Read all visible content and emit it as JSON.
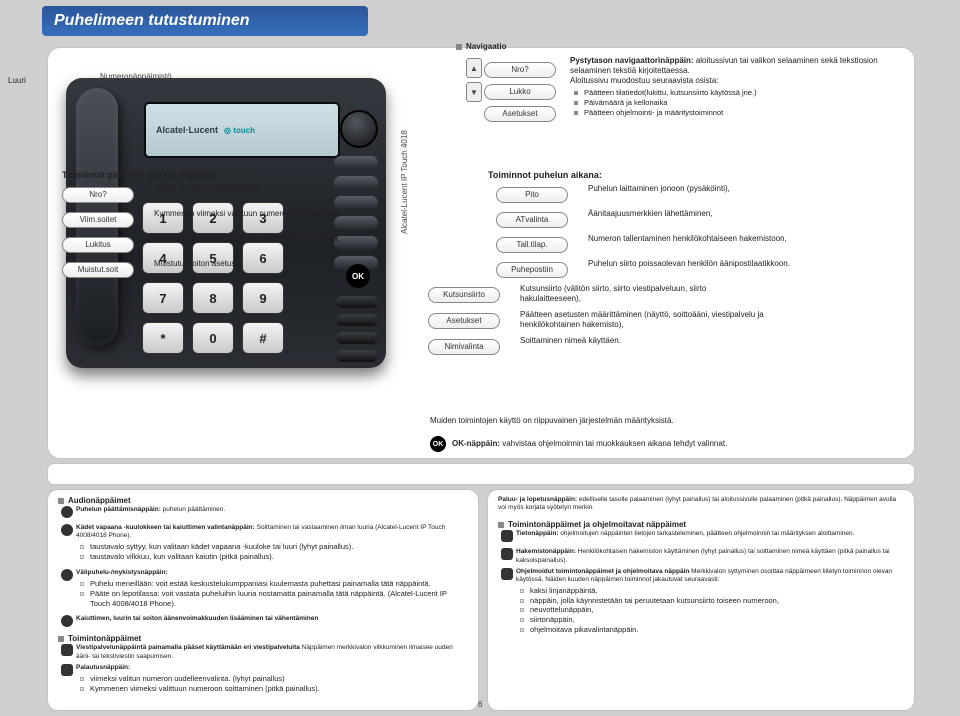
{
  "title": "Puhelimeen tutustuminen",
  "side_labels": {
    "luuri": "Luuri",
    "numeronapp": "Numeronäppäimistö"
  },
  "nav": {
    "header": "Navigaatio",
    "items": [
      "Nro?",
      "Lukko",
      "Asetukset"
    ],
    "up": "▲",
    "down": "▼",
    "desc_heading": "Pystytason navigaattorinäppäin:",
    "desc": "aloitussivun tai valikon selaaminen sekä tekstiosion selaaminen tekstiä kirjoitettaessa.",
    "l1": "Aloitussivu muodostuu seuraavista osista:",
    "bullets": [
      "Päätteen tilatiedot(lukittu, kutsunsiirto käytössä jne.)",
      "Päivämäärä ja kellonaika",
      "Päätteen ohjelmointi- ja määritystoiminnot"
    ]
  },
  "phone": {
    "brand": "Alcatel·Lucent",
    "touch": "◎ touch",
    "model": "Alcatel-Lucent IP Touch 4018",
    "ok": "OK"
  },
  "headers": {
    "idle": "Toiminnot päätteen ollessa vapaana:",
    "call": "Toiminnot puhelun aikana:"
  },
  "rows": [
    {
      "pL": "Nro?",
      "dL": "Oman numeron selvittäminen,",
      "pR": "Pito",
      "dR": "Puhelun laittaminen jonoon (pysäköinti),"
    },
    {
      "pL": "Viim.soitet",
      "dL": "Kymmenen viimeksi valittuun numeroon soittaminen,",
      "pR": "ATvalinta",
      "dR": "Äänitaajuusmerkkien lähettäminen,"
    },
    {
      "pL": "Lukitus",
      "dL": "Päätteen ottaminen käyttöön / poistaminen käytöstä,",
      "pR": "Tall.tilap.",
      "dR": "Numeron tallentaminen henkilökohtaiseen hakemistoon,"
    },
    {
      "pL": "Muistut.soit",
      "dL": "Muistutussoiton asetus,",
      "pR": "Puhepostiin",
      "dR": "Puhelun siirto poissaolevan henkilön äänipostilaatikkoon."
    },
    {
      "pL": "Kutsunsiirto",
      "dL": "Kutsunsiirto (välitön siirto, siirto viestipalveluun, siirto hakulaitteeseen),"
    },
    {
      "pL": "Asetukset",
      "dL": "Päätteen asetusten määrittäminen (näyttö, soittoääni, viestipalvelu ja henkilökohtainen hakemisto),"
    },
    {
      "pL": "Nimivalinta",
      "dL": "Soittaminen nimeä käyttäen."
    }
  ],
  "note": "Muiden toimintojen käyttö on riippuvainen järjestelmän määrityksistä.",
  "ok_line": {
    "btn": "OK",
    "label": "OK-näppäin:",
    "desc": "vahvistaa ohjelmoinnin tai muokkauksen aikana tehdyt valinnat."
  },
  "audio": {
    "header": "Audionäppäimet",
    "items": [
      {
        "b": "Puhelun päättämisnäppäin:",
        "t": "puhelun päättäminen."
      },
      {
        "b": "Kädet vapaana -kuulokkeen tai kaiuttimen valintanäppäin:",
        "t": "Soittaminen tai vastaaminen ilman luuria (Alcatel-Lucent IP Touch 4008/4018 Phone).",
        "sub": [
          "taustavalo syttyy, kun valitaan kädet vapaana -kuuloke tai luuri (lyhyt painallus).",
          "taustavalo vilkkuu, kun valitaan kaiutin (pitkä painallus)."
        ]
      },
      {
        "b": "Välipuhelu-/mykistysnäppäin:",
        "sub": [
          "Puhelu meneillään: voit estää keskustelukumppaniasi kuulemasta puhettasi painamalla tätä näppäintä.",
          "Pääte on lepotilassa: voit vastata puheluihin luuria nostamatta painamalla tätä näppäintä. (Alcatel-Lucent IP Touch 4008/4018 Phone)."
        ]
      },
      {
        "b": "Kaiuttimen, luurin tai soiton äänenvoimakkuuden lisääminen tai vähentäminen"
      }
    ],
    "toim_h": "Toimintonäppäimet",
    "toim": [
      {
        "b": "Viestipalvelunäppäintä painamalla pääset käyttämään eri viestipalveluita",
        "t": "Näppäimen merkkivalon vilkkuminen ilmaisee uuden ääni- tai tekstiviestin saapumisen."
      },
      {
        "b": "Palautusnäppäin:",
        "sub": [
          "viimeksi valitun numeron uudelleenvalinta.   (lyhyt painallus)",
          "Kymmenen viimeksi valittuun numeroon soittaminen (pitkä painallus)."
        ]
      }
    ]
  },
  "return": {
    "b": "Paluu- ja lopetusnäppäin:",
    "t": "edelliselle tasolle palaaminen (lyhyt painallus) tai aloitussivulle palaaminen (pitkä painallus). Näppäimen avulla voi myös korjata syötetyn merkin."
  },
  "prog": {
    "header": "Toimintonäppäimet ja ohjelmoitavat näppäimet",
    "items": [
      {
        "b": "Tietonäppäin:",
        "t": "ohjelmoitujen näppäinten tietojen tarkasteleminen, päätteen ohjelmoinnin tai määrityksen aloittaminen."
      },
      {
        "b": "Hakemistonäppäin:",
        "t": "Henkilökohtaisen hakemiston käyttäminen (lyhyt painallus) tai soittaminen nimeä käyttäen (pitkä painallus tai kaksoispainallus)."
      },
      {
        "b": "Ohjelmoidut toimintonäppäimet ja ohjelmoitava näppäin",
        "t": "Merkkivalon syttyminen osoittaa näppäimeen liitetyn toiminnon olevan käytössä. Näiden kuuden näppäimen toiminnot jakautuvat seuraavasti:",
        "sub": [
          "kaksi linjanäppäintä,",
          "näppäin, jolla käynnistetään tai peruutetaan kutsunsiirto toiseen numeroon,",
          "neuvottelunäppäin,",
          "siirtonäppäin,",
          "ohjelmoitava pikavalintanäppäin."
        ]
      }
    ]
  },
  "pagenum": "6",
  "colors": {
    "title_bg": "#386fbc",
    "panel": "#ffffff",
    "page": "#cfcfcf"
  }
}
